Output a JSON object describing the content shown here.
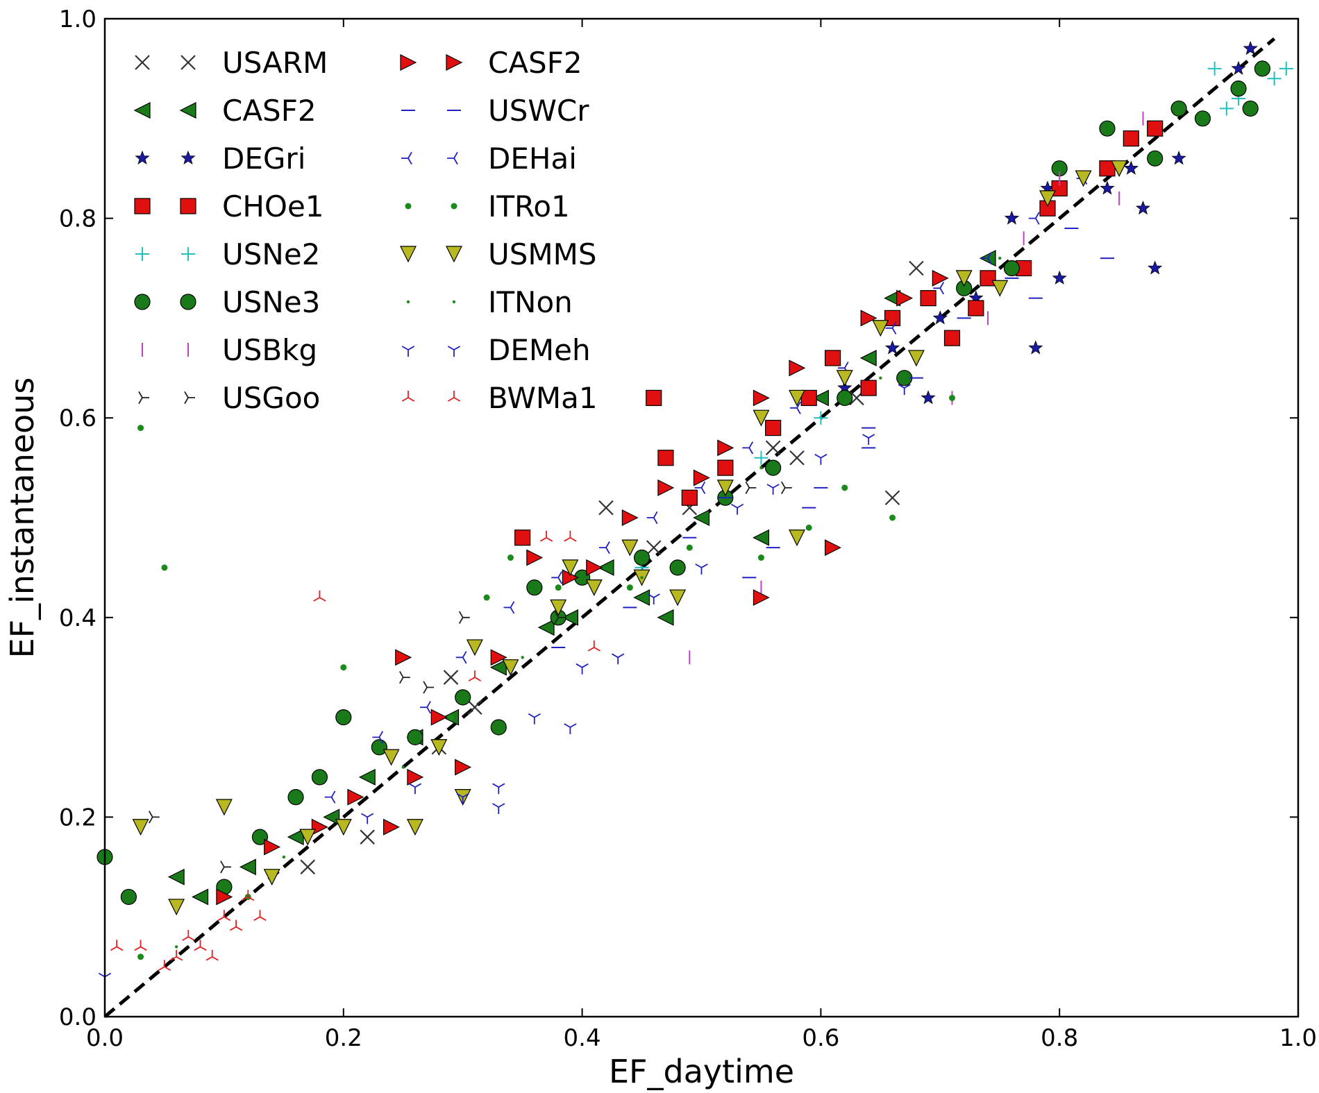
{
  "chart_data": {
    "type": "scatter",
    "title": "",
    "xlabel": "EF_daytime",
    "ylabel": "EF_instantaneous",
    "xlim": [
      0.0,
      1.0
    ],
    "ylim": [
      0.0,
      1.0
    ],
    "xticks": [
      "0.0",
      "0.2",
      "0.4",
      "0.6",
      "0.8",
      "1.0"
    ],
    "yticks": [
      "0.0",
      "0.2",
      "0.4",
      "0.6",
      "0.8",
      "1.0"
    ],
    "grid": false,
    "legend_position": "top-left",
    "reference_line": {
      "style": "dashed",
      "color": "#000000",
      "from": [
        0.0,
        0.0
      ],
      "to": [
        0.98,
        0.98
      ]
    },
    "series": [
      {
        "name": "USARM",
        "marker": "x",
        "color": "#333333",
        "x": [
          0.17,
          0.29,
          0.31,
          0.42,
          0.46,
          0.49,
          0.56,
          0.58,
          0.63,
          0.66,
          0.68,
          0.74,
          0.22,
          0.28
        ],
        "y": [
          0.15,
          0.34,
          0.31,
          0.51,
          0.47,
          0.51,
          0.57,
          0.56,
          0.62,
          0.52,
          0.75,
          0.74,
          0.18,
          0.27
        ]
      },
      {
        "name": "CASF2",
        "marker": "triangle-left",
        "color": "#1a7a1a",
        "x": [
          0.06,
          0.08,
          0.12,
          0.16,
          0.19,
          0.22,
          0.26,
          0.29,
          0.33,
          0.37,
          0.39,
          0.42,
          0.45,
          0.47,
          0.5,
          0.55,
          0.6,
          0.64,
          0.66,
          0.74
        ],
        "y": [
          0.14,
          0.12,
          0.15,
          0.18,
          0.2,
          0.24,
          0.28,
          0.3,
          0.35,
          0.39,
          0.4,
          0.45,
          0.42,
          0.4,
          0.5,
          0.48,
          0.62,
          0.66,
          0.72,
          0.76
        ]
      },
      {
        "name": "DEGri",
        "marker": "star",
        "color": "#1a1aa0",
        "x": [
          0.62,
          0.66,
          0.7,
          0.73,
          0.76,
          0.78,
          0.8,
          0.84,
          0.87,
          0.88,
          0.9,
          0.92,
          0.95,
          0.96,
          0.69,
          0.79,
          0.86
        ],
        "y": [
          0.63,
          0.67,
          0.7,
          0.72,
          0.8,
          0.67,
          0.74,
          0.83,
          0.81,
          0.75,
          0.86,
          0.9,
          0.95,
          0.97,
          0.62,
          0.83,
          0.85
        ]
      },
      {
        "name": "CHOe1",
        "marker": "square",
        "color": "#e01010",
        "x": [
          0.46,
          0.47,
          0.49,
          0.52,
          0.56,
          0.59,
          0.61,
          0.64,
          0.66,
          0.69,
          0.71,
          0.73,
          0.74,
          0.77,
          0.79,
          0.8,
          0.84,
          0.86,
          0.88,
          0.35
        ],
        "y": [
          0.62,
          0.56,
          0.52,
          0.55,
          0.59,
          0.62,
          0.66,
          0.63,
          0.7,
          0.72,
          0.68,
          0.71,
          0.74,
          0.75,
          0.81,
          0.83,
          0.85,
          0.88,
          0.89,
          0.48
        ]
      },
      {
        "name": "USNe2",
        "marker": "plus",
        "color": "#20c0c0",
        "x": [
          0.93,
          0.94,
          0.98,
          0.99,
          0.95,
          0.6,
          0.55,
          0.45
        ],
        "y": [
          0.95,
          0.91,
          0.94,
          0.95,
          0.92,
          0.6,
          0.56,
          0.45
        ]
      },
      {
        "name": "USNe3",
        "marker": "circle",
        "color": "#1a7a1a",
        "x": [
          0.0,
          0.02,
          0.1,
          0.13,
          0.16,
          0.18,
          0.2,
          0.23,
          0.26,
          0.3,
          0.33,
          0.36,
          0.38,
          0.4,
          0.45,
          0.48,
          0.52,
          0.56,
          0.62,
          0.67,
          0.72,
          0.76,
          0.8,
          0.84,
          0.88,
          0.9,
          0.92,
          0.95,
          0.96,
          0.97
        ],
        "y": [
          0.16,
          0.12,
          0.13,
          0.18,
          0.22,
          0.24,
          0.3,
          0.27,
          0.28,
          0.32,
          0.29,
          0.43,
          0.4,
          0.44,
          0.46,
          0.45,
          0.52,
          0.55,
          0.62,
          0.64,
          0.73,
          0.75,
          0.85,
          0.89,
          0.86,
          0.91,
          0.9,
          0.93,
          0.91,
          0.95
        ]
      },
      {
        "name": "USBkg",
        "marker": "vline",
        "color": "#c040c0",
        "x": [
          0.49,
          0.55,
          0.71,
          0.74,
          0.77,
          0.8,
          0.85,
          0.87
        ],
        "y": [
          0.36,
          0.43,
          0.62,
          0.7,
          0.78,
          0.84,
          0.82,
          0.9
        ]
      },
      {
        "name": "USGoo",
        "marker": "tri-right",
        "color": "#222222",
        "x": [
          0.04,
          0.1,
          0.3,
          0.27,
          0.54,
          0.57,
          0.25,
          0.38
        ],
        "y": [
          0.2,
          0.15,
          0.4,
          0.33,
          0.53,
          0.53,
          0.34,
          0.4
        ]
      },
      {
        "name": "CASF2",
        "marker": "triangle-right",
        "color": "#e01010",
        "x": [
          0.1,
          0.14,
          0.18,
          0.21,
          0.24,
          0.26,
          0.28,
          0.3,
          0.33,
          0.36,
          0.39,
          0.41,
          0.44,
          0.47,
          0.5,
          0.52,
          0.55,
          0.58,
          0.61,
          0.64,
          0.67,
          0.7,
          0.25,
          0.55
        ],
        "y": [
          0.12,
          0.17,
          0.19,
          0.22,
          0.19,
          0.24,
          0.3,
          0.25,
          0.36,
          0.46,
          0.44,
          0.45,
          0.5,
          0.53,
          0.54,
          0.57,
          0.62,
          0.65,
          0.47,
          0.7,
          0.72,
          0.74,
          0.36,
          0.42
        ]
      },
      {
        "name": "USWCr",
        "marker": "hline",
        "color": "#2020c0",
        "x": [
          0.38,
          0.44,
          0.49,
          0.52,
          0.56,
          0.6,
          0.64,
          0.68,
          0.72,
          0.76,
          0.78,
          0.81,
          0.84,
          0.54,
          0.59,
          0.64
        ],
        "y": [
          0.37,
          0.41,
          0.48,
          0.52,
          0.47,
          0.53,
          0.59,
          0.64,
          0.7,
          0.74,
          0.72,
          0.79,
          0.76,
          0.44,
          0.51,
          0.57
        ]
      },
      {
        "name": "DEHai",
        "marker": "tri-left",
        "color": "#2020c0",
        "x": [
          0.19,
          0.23,
          0.27,
          0.3,
          0.34,
          0.38,
          0.42,
          0.46,
          0.5,
          0.54,
          0.58,
          0.62,
          0.66,
          0.7,
          0.74,
          0.78,
          0.82
        ],
        "y": [
          0.22,
          0.28,
          0.31,
          0.36,
          0.41,
          0.44,
          0.47,
          0.5,
          0.53,
          0.57,
          0.61,
          0.65,
          0.69,
          0.73,
          0.76,
          0.8,
          0.84
        ]
      },
      {
        "name": "ITRo1",
        "marker": "dot",
        "color": "#1a8a1a",
        "x": [
          0.03,
          0.05,
          0.2,
          0.29,
          0.32,
          0.34,
          0.38,
          0.44,
          0.49,
          0.55,
          0.59,
          0.62,
          0.66,
          0.71,
          0.03,
          0.12
        ],
        "y": [
          0.59,
          0.45,
          0.35,
          0.3,
          0.42,
          0.46,
          0.43,
          0.43,
          0.47,
          0.46,
          0.49,
          0.53,
          0.5,
          0.62,
          0.06,
          0.12
        ]
      },
      {
        "name": "USMMS",
        "marker": "triangle-down",
        "color": "#b8b820",
        "x": [
          0.03,
          0.06,
          0.1,
          0.14,
          0.17,
          0.2,
          0.24,
          0.28,
          0.31,
          0.34,
          0.38,
          0.41,
          0.45,
          0.48,
          0.52,
          0.55,
          0.58,
          0.62,
          0.65,
          0.68,
          0.72,
          0.75,
          0.79,
          0.82,
          0.85,
          0.26,
          0.3,
          0.39,
          0.44,
          0.58
        ],
        "y": [
          0.19,
          0.11,
          0.21,
          0.14,
          0.18,
          0.19,
          0.26,
          0.27,
          0.37,
          0.35,
          0.41,
          0.43,
          0.44,
          0.42,
          0.53,
          0.6,
          0.62,
          0.64,
          0.69,
          0.66,
          0.74,
          0.73,
          0.82,
          0.84,
          0.85,
          0.19,
          0.22,
          0.45,
          0.47,
          0.48
        ]
      },
      {
        "name": "ITNon",
        "marker": "point",
        "color": "#1a8a1a",
        "x": [
          0.06,
          0.15,
          0.25,
          0.35,
          0.45,
          0.55,
          0.65,
          0.75
        ],
        "y": [
          0.07,
          0.16,
          0.25,
          0.36,
          0.44,
          0.55,
          0.64,
          0.76
        ]
      },
      {
        "name": "DEMeh",
        "marker": "tri-down",
        "color": "#2020c0",
        "x": [
          0.0,
          0.22,
          0.26,
          0.3,
          0.33,
          0.36,
          0.4,
          0.43,
          0.46,
          0.5,
          0.53,
          0.56,
          0.6,
          0.64,
          0.67,
          0.33,
          0.39
        ],
        "y": [
          0.04,
          0.2,
          0.23,
          0.22,
          0.23,
          0.3,
          0.35,
          0.36,
          0.42,
          0.45,
          0.51,
          0.53,
          0.56,
          0.58,
          0.63,
          0.21,
          0.29
        ]
      },
      {
        "name": "BWMa1",
        "marker": "tri-up",
        "color": "#e02020",
        "x": [
          0.01,
          0.03,
          0.05,
          0.06,
          0.07,
          0.08,
          0.09,
          0.1,
          0.11,
          0.12,
          0.13,
          0.18,
          0.31,
          0.37,
          0.39,
          0.41
        ],
        "y": [
          0.07,
          0.07,
          0.05,
          0.06,
          0.08,
          0.07,
          0.06,
          0.1,
          0.09,
          0.12,
          0.1,
          0.42,
          0.34,
          0.48,
          0.48,
          0.37
        ]
      }
    ]
  }
}
